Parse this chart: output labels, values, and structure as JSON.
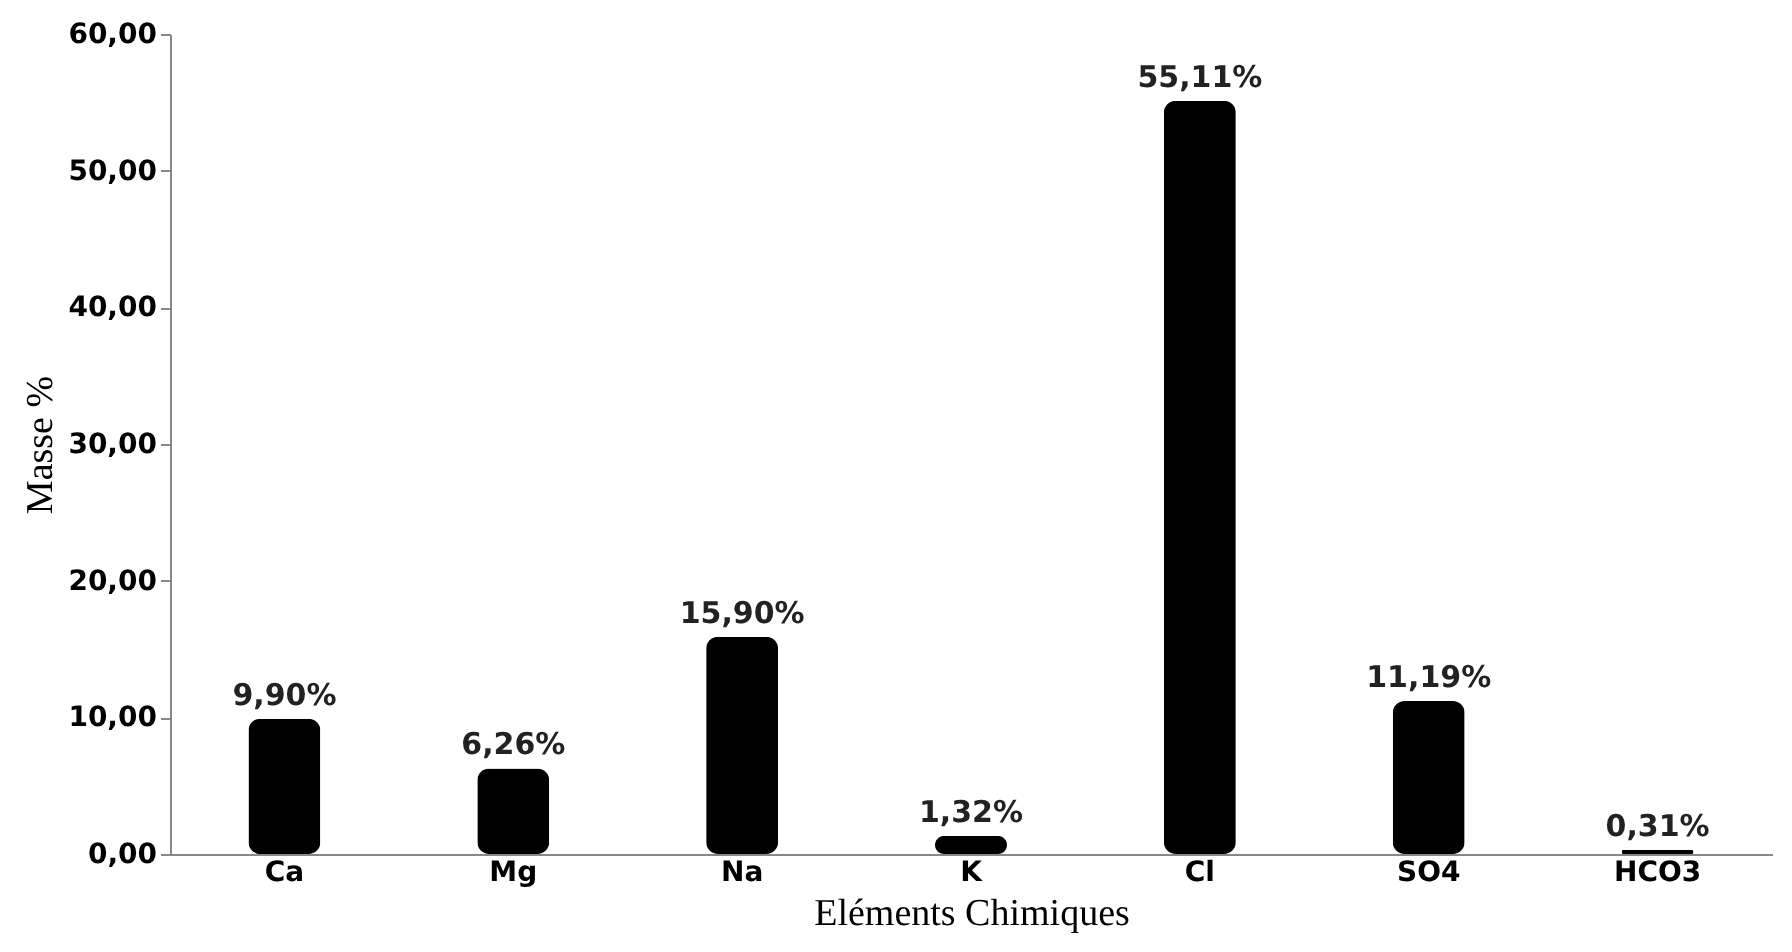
{
  "chart_data": {
    "type": "bar",
    "xlabel": "Eléments Chimiques",
    "ylabel": "Masse %",
    "categories": [
      "Ca",
      "Mg",
      "Na",
      "K",
      "Cl",
      "SO4",
      "HCO3"
    ],
    "values": [
      9.9,
      6.26,
      15.9,
      1.32,
      55.11,
      11.19,
      0.31
    ],
    "value_labels": [
      "9,90%",
      "6,26%",
      "15,90%",
      "1,32%",
      "55,11%",
      "11,19%",
      "0,31%"
    ],
    "color": "#000000",
    "ylim": [
      0,
      60
    ],
    "yticks": [
      {
        "value": 0,
        "label": "0,00"
      },
      {
        "value": 10,
        "label": "10,00"
      },
      {
        "value": 20,
        "label": "20,00"
      },
      {
        "value": 30,
        "label": "30,00"
      },
      {
        "value": 40,
        "label": "40,00"
      },
      {
        "value": 50,
        "label": "50,00"
      },
      {
        "value": 60,
        "label": "60,00"
      }
    ],
    "grid": false
  }
}
